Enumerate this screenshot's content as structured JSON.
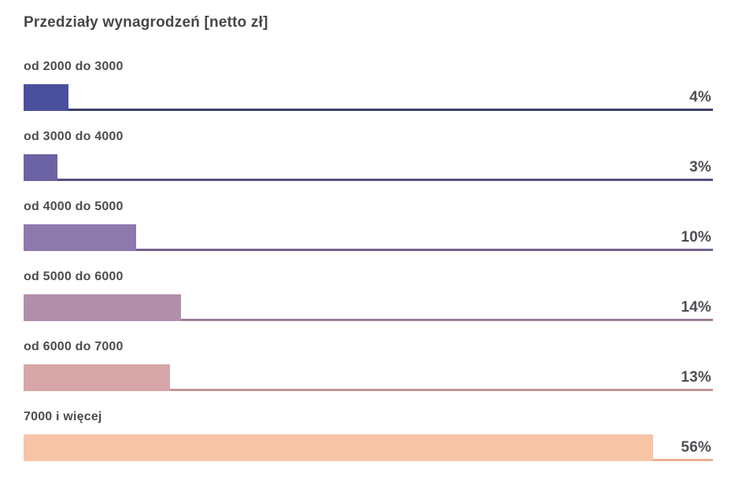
{
  "chart_data": {
    "type": "bar",
    "orientation": "horizontal",
    "title": "Przedziały wynagrodzeń [netto zł]",
    "xlabel": "",
    "ylabel": "",
    "xlim": [
      0,
      61.3
    ],
    "grid": false,
    "legend": false,
    "value_suffix": "%",
    "categories": [
      "od 2000 do 3000",
      "od 3000 do 4000",
      "od 4000 do 5000",
      "od 5000 do 6000",
      "od 6000 do 7000",
      "7000 i więcej"
    ],
    "values": [
      4,
      3,
      10,
      14,
      13,
      56
    ],
    "rows": [
      {
        "label": "od 2000 do 3000",
        "value": 4,
        "value_label": "4%",
        "bar_color": "#4a4f9e",
        "line_color": "#3c4168"
      },
      {
        "label": "od 3000 do 4000",
        "value": 3,
        "value_label": "3%",
        "bar_color": "#6c63a5",
        "line_color": "#575085"
      },
      {
        "label": "od 4000 do 5000",
        "value": 10,
        "value_label": "10%",
        "bar_color": "#8e79ac",
        "line_color": "#746390"
      },
      {
        "label": "od 5000 do 6000",
        "value": 14,
        "value_label": "14%",
        "bar_color": "#b28eab",
        "line_color": "#9d7e97"
      },
      {
        "label": "od 6000 do 7000",
        "value": 13,
        "value_label": "13%",
        "bar_color": "#d6a6a8",
        "line_color": "#c29597"
      },
      {
        "label": "7000 i więcej",
        "value": 56,
        "value_label": "56%",
        "bar_color": "#f7c4a7",
        "line_color": "#eeb092"
      }
    ],
    "colors": {
      "title_text": "#47474a",
      "category_text": "#4d4d4f",
      "value_text": "#4e4f55",
      "background": "#ffffff"
    }
  }
}
